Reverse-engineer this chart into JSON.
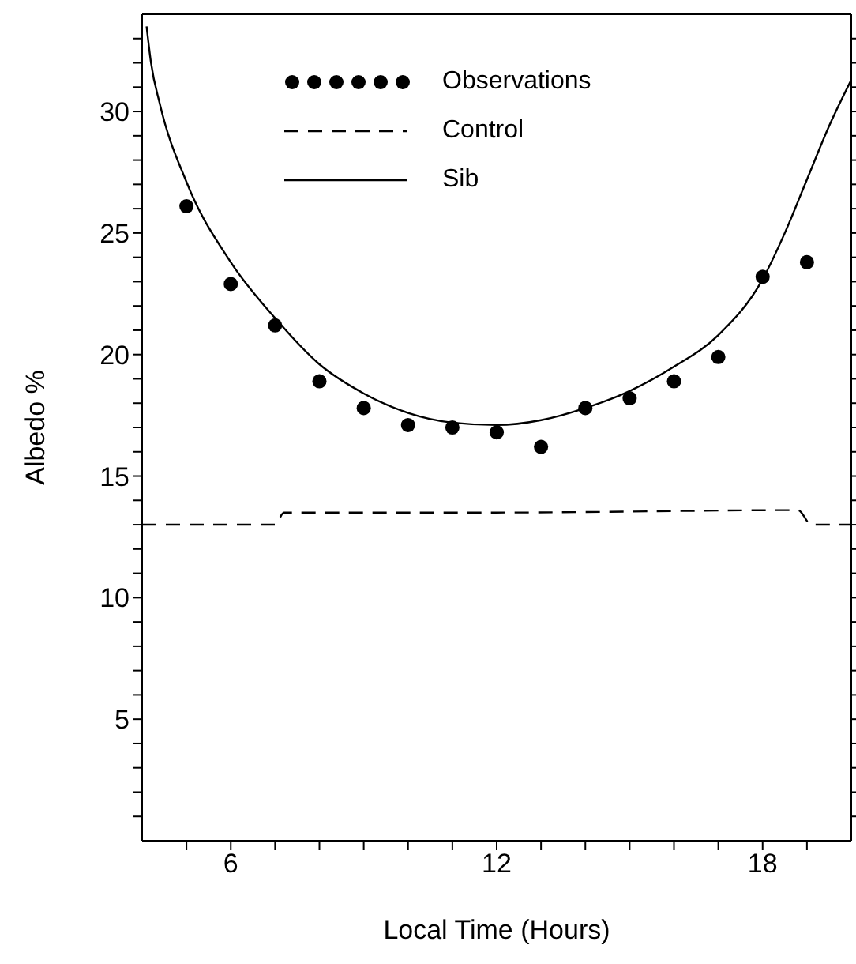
{
  "chart_data": {
    "type": "line",
    "xlabel": "Local Time (Hours)",
    "ylabel": "Albedo %",
    "xlim": [
      4,
      20
    ],
    "ylim": [
      0,
      34
    ],
    "xticks": [
      {
        "value": 5,
        "label": null
      },
      6,
      {
        "value": 7,
        "label": null
      },
      {
        "value": 8,
        "label": null
      },
      {
        "value": 9,
        "label": null
      },
      {
        "value": 10,
        "label": null
      },
      {
        "value": 11,
        "label": null
      },
      12,
      {
        "value": 13,
        "label": null
      },
      {
        "value": 14,
        "label": null
      },
      {
        "value": 15,
        "label": null
      },
      {
        "value": 16,
        "label": null
      },
      {
        "value": 17,
        "label": null
      },
      18,
      {
        "value": 19,
        "label": null
      }
    ],
    "yticks": [
      {
        "value": 1,
        "label": null
      },
      {
        "value": 2,
        "label": null
      },
      {
        "value": 3,
        "label": null
      },
      {
        "value": 4,
        "label": null
      },
      5,
      {
        "value": 6,
        "label": null
      },
      {
        "value": 7,
        "label": null
      },
      {
        "value": 8,
        "label": null
      },
      {
        "value": 9,
        "label": null
      },
      10,
      {
        "value": 11,
        "label": null
      },
      {
        "value": 12,
        "label": null
      },
      {
        "value": 13,
        "label": null
      },
      {
        "value": 14,
        "label": null
      },
      15,
      {
        "value": 16,
        "label": null
      },
      {
        "value": 17,
        "label": null
      },
      {
        "value": 18,
        "label": null
      },
      {
        "value": 19,
        "label": null
      },
      20,
      {
        "value": 21,
        "label": null
      },
      {
        "value": 22,
        "label": null
      },
      {
        "value": 23,
        "label": null
      },
      {
        "value": 24,
        "label": null
      },
      25,
      {
        "value": 26,
        "label": null
      },
      {
        "value": 27,
        "label": null
      },
      {
        "value": 28,
        "label": null
      },
      {
        "value": 29,
        "label": null
      },
      30,
      {
        "value": 31,
        "label": null
      },
      {
        "value": 32,
        "label": null
      },
      {
        "value": 33,
        "label": null
      }
    ],
    "legend": "top",
    "series": [
      {
        "name": "Observations",
        "type": "scatter",
        "marker": "circle",
        "color": "#000000",
        "x": [
          5,
          6,
          7,
          8,
          9,
          10,
          11,
          12,
          13,
          14,
          15,
          16,
          17,
          18,
          19
        ],
        "values": [
          26.1,
          22.9,
          21.2,
          18.9,
          17.8,
          17.1,
          17.0,
          16.8,
          16.2,
          17.8,
          18.2,
          18.9,
          19.9,
          23.2,
          23.8
        ]
      },
      {
        "name": "Control",
        "line_style": "dashed",
        "marker": "none",
        "color": "#000000",
        "x": [
          4,
          7,
          7.2,
          12,
          18.8,
          19.1,
          20
        ],
        "values": [
          13.0,
          13.0,
          13.5,
          13.5,
          13.6,
          13.0,
          13.0
        ]
      },
      {
        "name": "Sib",
        "line_style": "solid",
        "marker": "none",
        "color": "#000000",
        "x": [
          4.1,
          4.2,
          4.4,
          5,
          6,
          7,
          8,
          9,
          10,
          11,
          12,
          13,
          14,
          15,
          16,
          17,
          18,
          18.5,
          19,
          19.5,
          20
        ],
        "values": [
          33.5,
          32.0,
          30.3,
          27.1,
          23.8,
          21.5,
          19.6,
          18.4,
          17.6,
          17.2,
          17.1,
          17.3,
          17.8,
          18.5,
          19.5,
          20.8,
          23.1,
          25.0,
          27.2,
          29.4,
          31.3
        ]
      }
    ]
  }
}
